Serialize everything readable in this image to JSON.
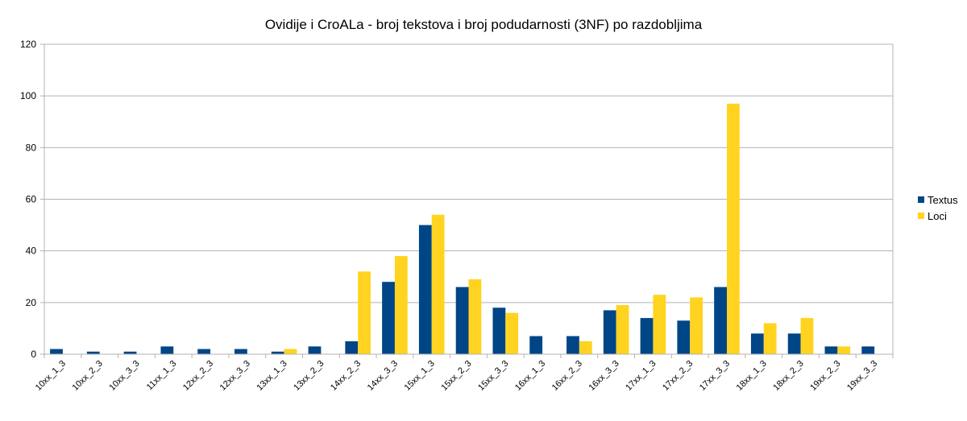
{
  "chart_data": {
    "type": "bar",
    "title": "Ovidije i CroALa - broj tekstova i broj podudarnosti (3NF) po razdobljima",
    "xlabel": "",
    "ylabel": "",
    "ylim": [
      0,
      120
    ],
    "yticks": [
      0,
      20,
      40,
      60,
      80,
      100,
      120
    ],
    "grid": true,
    "legend_position": "right",
    "categories": [
      "10xx_1_3",
      "10xx_2_3",
      "10xx_3_3",
      "11xx_1_3",
      "12xx_2_3",
      "12xx_3_3",
      "13xx_1_3",
      "13xx_2_3",
      "14xx_2_3",
      "14xx_3_3",
      "15xx_1_3",
      "15xx_2_3",
      "15xx_3_3",
      "16xx_1_3",
      "16xx_2_3",
      "16xx_3_3",
      "17xx_1_3",
      "17xx_2_3",
      "17xx_3_3",
      "18xx_1_3",
      "18xx_2_3",
      "19xx_2_3",
      "19xx_3_3"
    ],
    "series": [
      {
        "name": "Textus",
        "color": "#004586",
        "values": [
          2,
          1,
          1,
          3,
          2,
          2,
          1,
          3,
          5,
          28,
          50,
          26,
          18,
          7,
          7,
          17,
          14,
          13,
          26,
          8,
          8,
          3,
          3
        ]
      },
      {
        "name": "Loci",
        "color": "#ffd320",
        "values": [
          0,
          0,
          0,
          0,
          0,
          0,
          2,
          0,
          32,
          38,
          54,
          29,
          16,
          0,
          5,
          19,
          23,
          22,
          97,
          12,
          14,
          3,
          0
        ]
      }
    ]
  }
}
